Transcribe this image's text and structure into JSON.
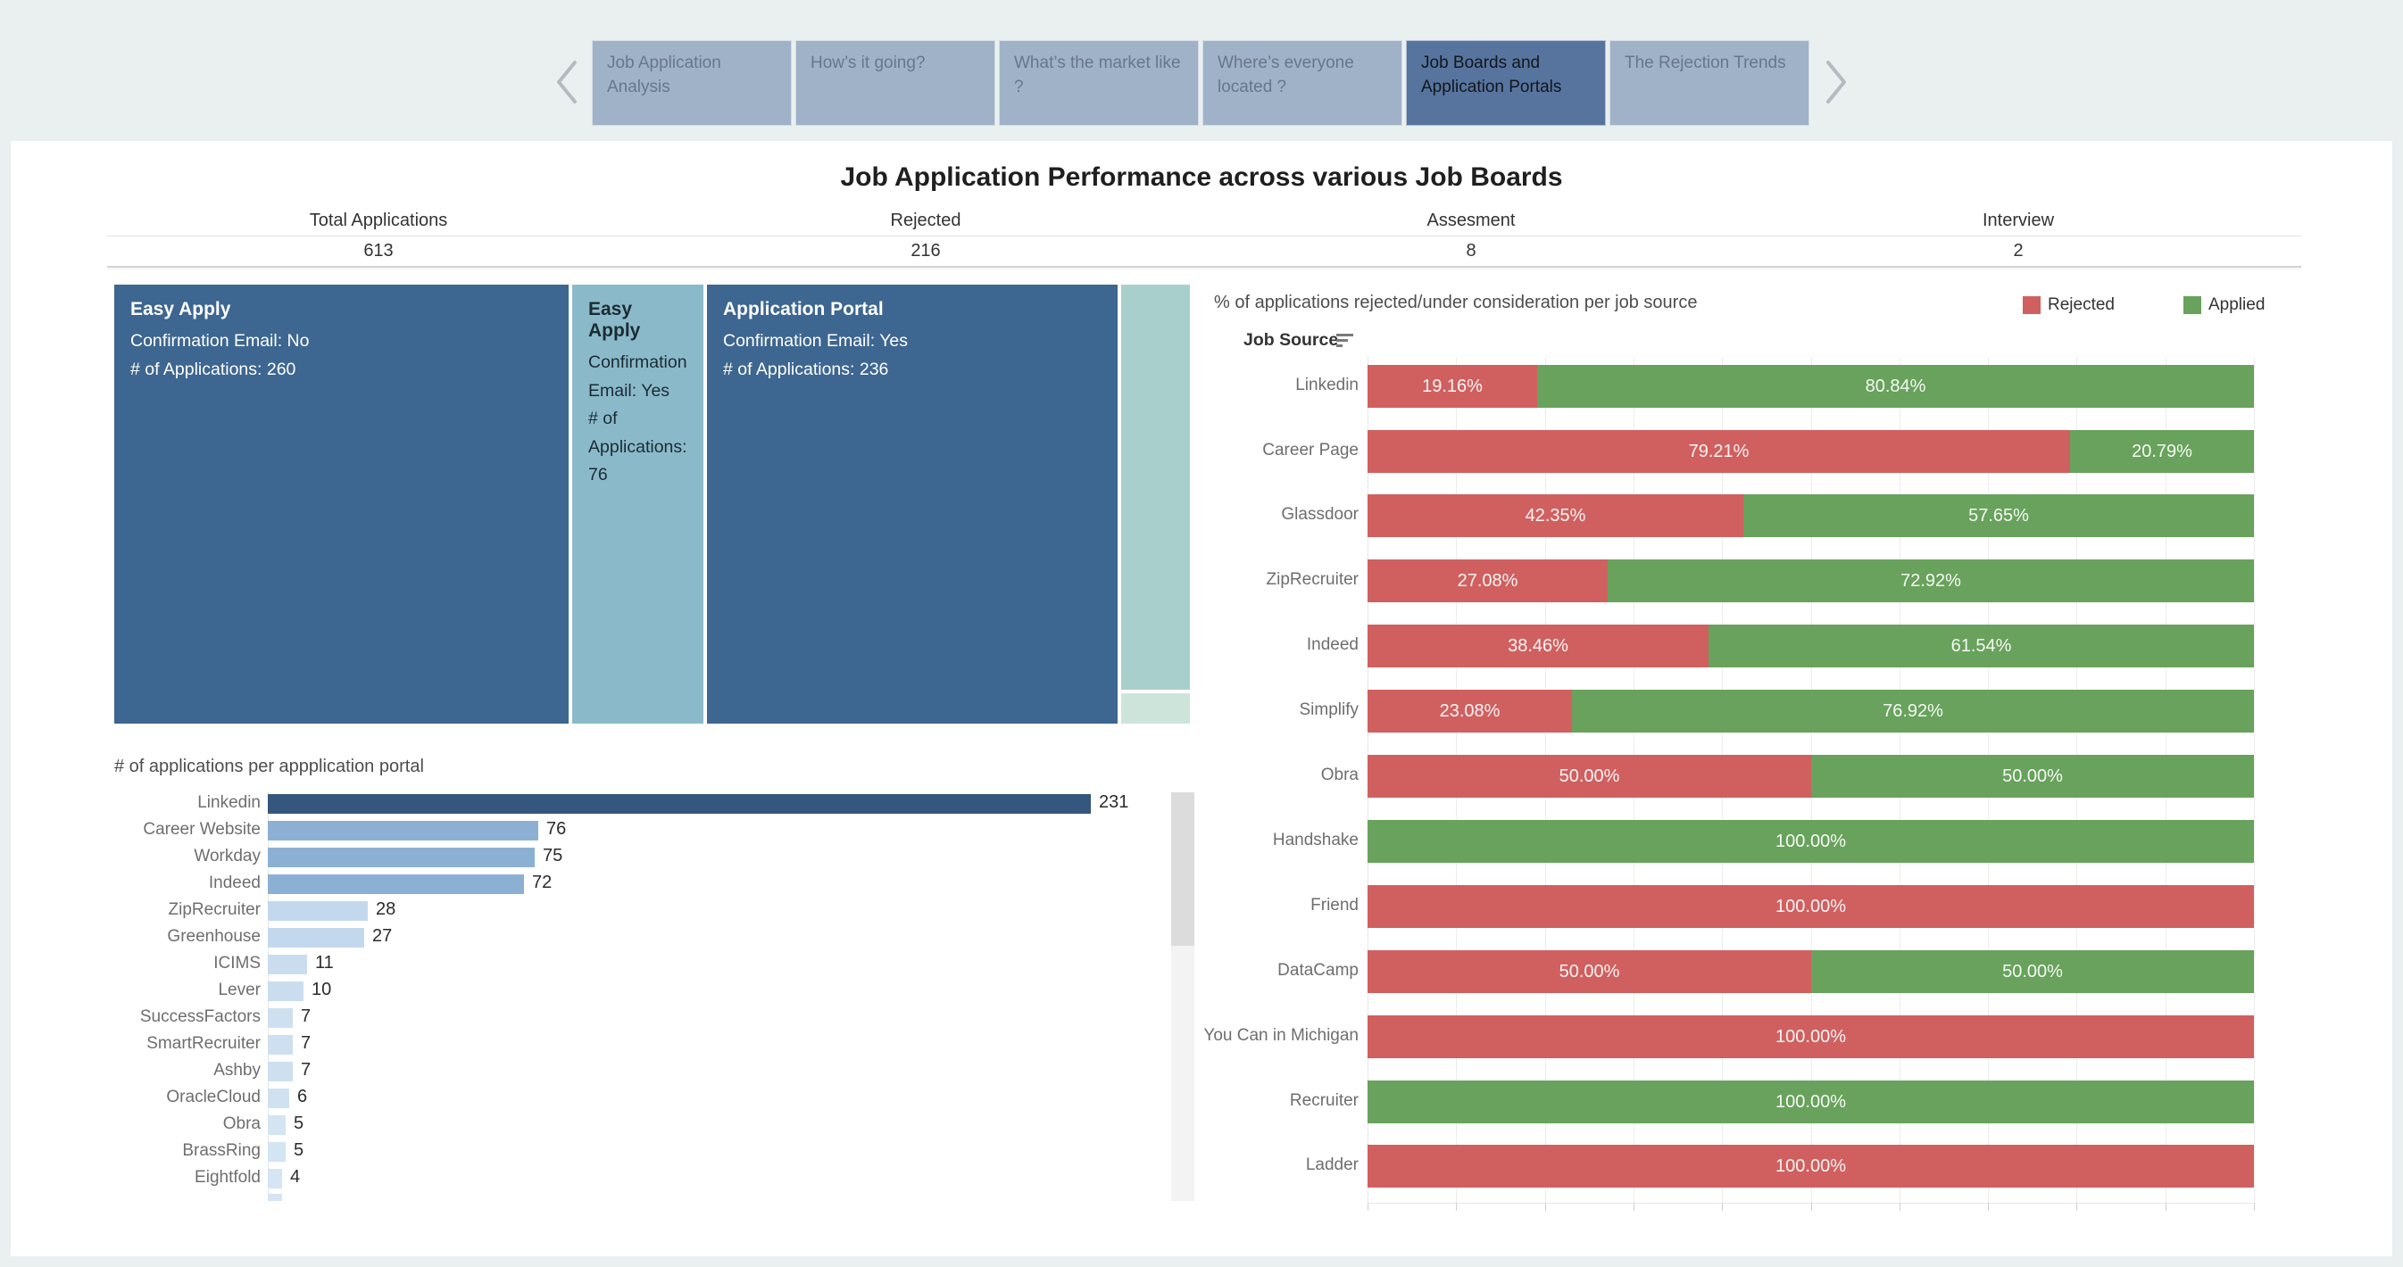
{
  "nav": {
    "tabs": [
      {
        "label": "Job Application Analysis",
        "active": false
      },
      {
        "label": "How’s it going?",
        "active": false
      },
      {
        "label": "What’s the market like ?",
        "active": false
      },
      {
        "label": "Where’s everyone located ?",
        "active": false
      },
      {
        "label": "Job Boards and Application Portals",
        "active": true
      },
      {
        "label": "The Rejection Trends",
        "active": false
      }
    ],
    "prev_icon": "chevron-left",
    "next_icon": "chevron-right"
  },
  "header": {
    "title": "Job Application Performance across various Job Boards"
  },
  "kpis": [
    {
      "label": "Total Applications",
      "value": "613"
    },
    {
      "label": "Rejected",
      "value": "216"
    },
    {
      "label": "Assesment",
      "value": "8"
    },
    {
      "label": "Interview",
      "value": "2"
    }
  ],
  "treemap": {
    "boxes": [
      {
        "title": "Easy Apply",
        "lines": [
          "Confirmation Email: No",
          "# of Applications: 260"
        ],
        "color": "#3d6690",
        "text_color": "#ffffff"
      },
      {
        "title": "Easy Apply",
        "lines": [
          "Confirmation Email: Yes",
          "# of Applications: 76"
        ],
        "color": "#8abaca",
        "text_color": "#1c2b33"
      },
      {
        "title": "Application Portal",
        "lines": [
          "Confirmation Email: Yes",
          "# of Applications: 236"
        ],
        "color": "#3d6690",
        "text_color": "#ffffff"
      },
      {
        "title": "",
        "lines": [],
        "color": "#a9cfcd",
        "text_color": "#1c2b33"
      },
      {
        "title": "",
        "lines": [],
        "color": "#cde4da",
        "text_color": "#1c2b33"
      }
    ]
  },
  "chart_data": [
    {
      "id": "applications_per_portal",
      "type": "bar",
      "orientation": "horizontal",
      "title": "# of applications per appplication portal",
      "categories": [
        "Linkedin",
        "Career Website",
        "Workday",
        "Indeed",
        "ZipRecruiter",
        "Greenhouse",
        "ICIMS",
        "Lever",
        "SuccessFactors",
        "SmartRecruiter",
        "Ashby",
        "OracleCloud",
        "Obra",
        "BrassRing",
        "Eightfold"
      ],
      "values": [
        231,
        76,
        75,
        72,
        28,
        27,
        11,
        10,
        7,
        7,
        7,
        6,
        5,
        5,
        4
      ],
      "bar_colors": [
        "#35567e",
        "#8cb0d4",
        "#8cb0d4",
        "#8cb0d4",
        "#c3d8ec",
        "#c3d8ec",
        "#c9ddef",
        "#c9ddef",
        "#cee0f0",
        "#cee0f0",
        "#cee0f0",
        "#d0e2f1",
        "#d3e4f2",
        "#d3e4f2",
        "#d5e5f3"
      ],
      "xlim": [
        0,
        231
      ],
      "scrollable": true,
      "partial_next_bar": true
    },
    {
      "id": "pct_rejected_by_source",
      "type": "bar",
      "stacked": true,
      "orientation": "horizontal",
      "title": "% of applications rejected/under consideration per job source",
      "axis_label": "Job Source",
      "legend_position": "top-right",
      "legend": [
        {
          "name": "Rejected",
          "color": "#d0605f"
        },
        {
          "name": "Applied",
          "color": "#68a25c"
        }
      ],
      "categories": [
        "Linkedin",
        "Career Page",
        "Glassdoor",
        "ZipRecruiter",
        "Indeed",
        "Simplify",
        "Obra",
        "Handshake",
        "Friend",
        "DataCamp",
        "You Can in Michigan",
        "Recruiter",
        "Ladder"
      ],
      "series": [
        {
          "name": "Rejected",
          "values": [
            19.16,
            79.21,
            42.35,
            27.08,
            38.46,
            23.08,
            50.0,
            0,
            100.0,
            50.0,
            100.0,
            0,
            100.0
          ]
        },
        {
          "name": "Applied",
          "values": [
            80.84,
            20.79,
            57.65,
            72.92,
            61.54,
            76.92,
            50.0,
            100.0,
            0,
            50.0,
            0,
            100.0,
            0
          ]
        }
      ],
      "xlim": [
        0,
        100
      ],
      "grid": true
    }
  ],
  "colors": {
    "page_bg": "#e9f0ef",
    "panel_bg": "#ffffff",
    "tab_inactive": "#a0b2c8",
    "tab_active": "#56749e",
    "rejected": "#d0605f",
    "applied": "#68a25c",
    "treemap_dark": "#3d6690",
    "treemap_mid": "#8abaca"
  }
}
